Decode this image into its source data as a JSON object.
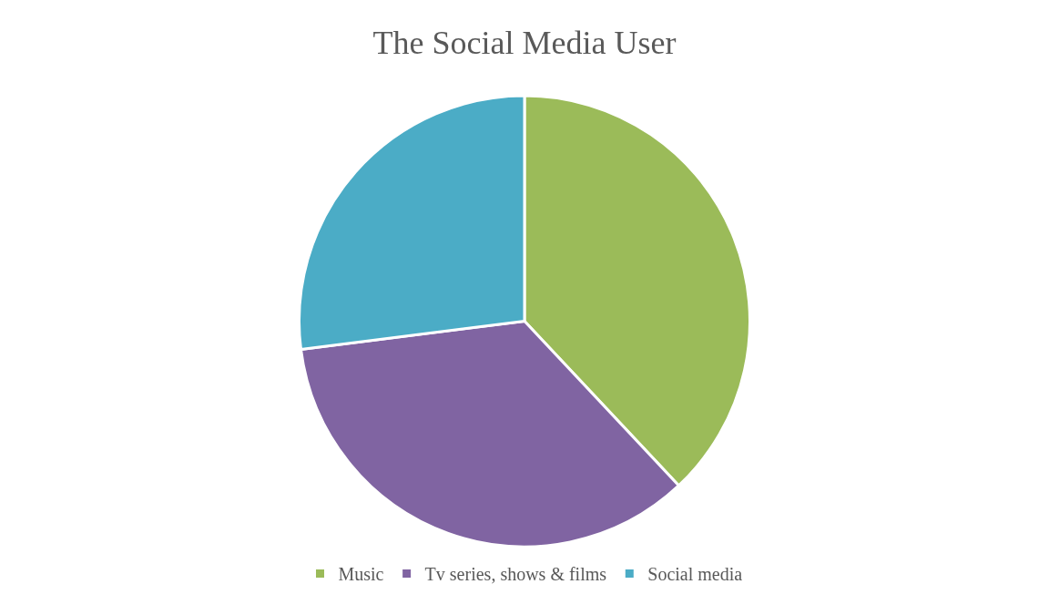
{
  "chart_data": {
    "type": "pie",
    "title": "The Social Media User",
    "categories": [
      "Music",
      "Tv series, shows & films",
      "Social media"
    ],
    "values": [
      38,
      35,
      27
    ],
    "colors": [
      "#9bbb59",
      "#8064a2",
      "#4bacc6"
    ],
    "legend": "bottom"
  }
}
